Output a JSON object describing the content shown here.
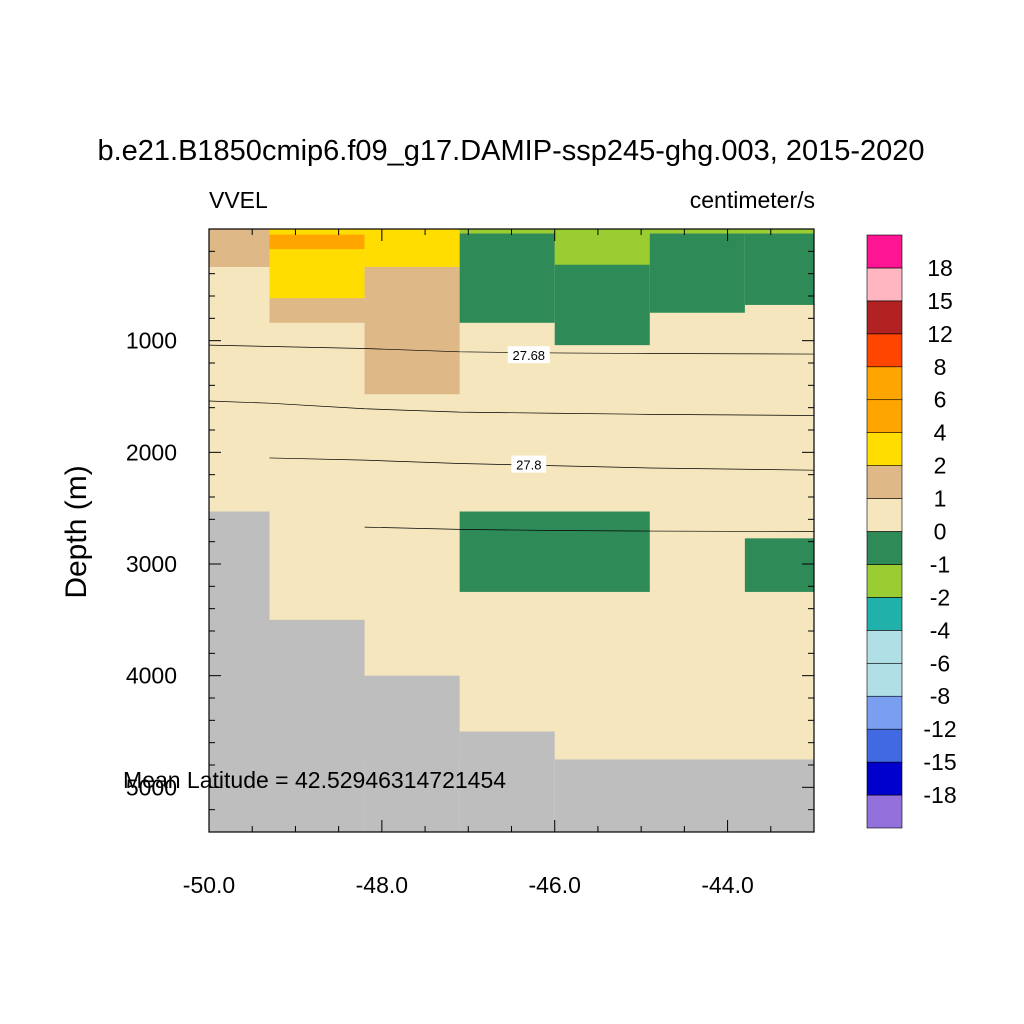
{
  "chart_data": {
    "type": "heatmap",
    "title": "b.e21.B1850cmip6.f09_g17.DAMIP-ssp245-ghg.003, 2015-2020",
    "left_label": "VVEL",
    "right_label": "centimeter/s",
    "ylabel": "Depth (m)",
    "xlabel": "",
    "xlim": [
      -50.0,
      -43.0
    ],
    "ylim_depth": [
      0,
      5400
    ],
    "y_reversed": true,
    "x_ticks": [
      -50.0,
      -48.0,
      -46.0,
      -44.0
    ],
    "x_tick_labels": [
      "-50.0",
      "-48.0",
      "-46.0",
      "-44.0"
    ],
    "y_ticks": [
      1000,
      2000,
      3000,
      4000,
      5000
    ],
    "y_tick_labels": [
      "1000",
      "2000",
      "3000",
      "4000",
      "5000"
    ],
    "annotation": "Mean Latitude = 42.52946314721454",
    "colors": {
      "land": "#bebebe",
      "c_m18": "#9370db",
      "c_m15": "#0000cd",
      "c_m12": "#4169e1",
      "c_m8": "#7b9ff0",
      "c_m6": "#b0dfe5",
      "c_m4": "#b0dfe5",
      "c_m2": "#20b2aa",
      "c_m1": "#9acd32",
      "c_0": "#2e8b57",
      "c_1": "#f5e6be",
      "c_2": "#deb887",
      "c_4": "#ffdd00",
      "c_6": "#ffa500",
      "c_8": "#ffa500",
      "c_12": "#ff4500",
      "c_15": "#b22222",
      "c_18": "#ffb6c1",
      "c_top": "#ff1493"
    },
    "colorbar": {
      "boxes": [
        "c_m18",
        "c_m15",
        "c_m12",
        "c_m8",
        "c_m6",
        "c_m4",
        "c_m2",
        "c_m1",
        "c_0",
        "c_1",
        "c_2",
        "c_4",
        "c_6",
        "c_8",
        "c_12",
        "c_15",
        "c_18",
        "c_top"
      ],
      "labels": [
        "-18",
        "-15",
        "-12",
        "-8",
        "-6",
        "-4",
        "-2",
        "-1",
        "0",
        "1",
        "2",
        "4",
        "6",
        "8",
        "12",
        "15",
        "18"
      ]
    },
    "cells": [
      {
        "x0": -50.0,
        "x1": -43.0,
        "y0": 0,
        "y1": 4750,
        "c": "c_1"
      },
      {
        "x0": -50.0,
        "x1": -49.3,
        "y0": 0,
        "y1": 2530,
        "c": "c_1"
      },
      {
        "x0": -50.0,
        "x1": -49.3,
        "y0": 2530,
        "y1": 5400,
        "c": "land"
      },
      {
        "x0": -49.3,
        "x1": -48.2,
        "y0": 3500,
        "y1": 5400,
        "c": "land"
      },
      {
        "x0": -48.2,
        "x1": -47.1,
        "y0": 4000,
        "y1": 5400,
        "c": "land"
      },
      {
        "x0": -47.1,
        "x1": -46.0,
        "y0": 4500,
        "y1": 5400,
        "c": "land"
      },
      {
        "x0": -46.0,
        "x1": -43.0,
        "y0": 4750,
        "y1": 5400,
        "c": "land"
      },
      {
        "x0": -50.0,
        "x1": -49.3,
        "y0": 0,
        "y1": 340,
        "c": "c_2"
      },
      {
        "x0": -49.3,
        "x1": -48.2,
        "y0": 0,
        "y1": 840,
        "c": "c_2"
      },
      {
        "x0": -49.3,
        "x1": -48.2,
        "y0": 0,
        "y1": 620,
        "c": "c_4"
      },
      {
        "x0": -49.3,
        "x1": -48.2,
        "y0": 50,
        "y1": 180,
        "c": "c_6"
      },
      {
        "x0": -48.2,
        "x1": -47.1,
        "y0": 0,
        "y1": 340,
        "c": "c_4"
      },
      {
        "x0": -48.2,
        "x1": -47.1,
        "y0": 340,
        "y1": 1480,
        "c": "c_2"
      },
      {
        "x0": -47.1,
        "x1": -46.0,
        "y0": 40,
        "y1": 840,
        "c": "c_0"
      },
      {
        "x0": -46.0,
        "x1": -44.9,
        "y0": 40,
        "y1": 1040,
        "c": "c_0"
      },
      {
        "x0": -46.0,
        "x1": -44.9,
        "y0": 40,
        "y1": 320,
        "c": "c_m1"
      },
      {
        "x0": -44.9,
        "x1": -43.8,
        "y0": 40,
        "y1": 750,
        "c": "c_0"
      },
      {
        "x0": -43.8,
        "x1": -43.0,
        "y0": 40,
        "y1": 680,
        "c": "c_0"
      },
      {
        "x0": -47.1,
        "x1": -43.0,
        "y0": 0,
        "y1": 40,
        "c": "c_m1"
      },
      {
        "x0": -47.1,
        "x1": -44.9,
        "y0": 2530,
        "y1": 3250,
        "c": "c_0"
      },
      {
        "x0": -43.8,
        "x1": -43.0,
        "y0": 2770,
        "y1": 3250,
        "c": "c_0"
      }
    ],
    "contours": [
      {
        "label": "27.68",
        "label_at": [
          -46.3,
          1130
        ],
        "points": [
          [
            -50.0,
            1040
          ],
          [
            -48.2,
            1070
          ],
          [
            -47.1,
            1100
          ],
          [
            -46.0,
            1110
          ],
          [
            -44.9,
            1115
          ],
          [
            -43.0,
            1120
          ]
        ]
      },
      {
        "label": "",
        "points": [
          [
            -50.0,
            1540
          ],
          [
            -49.3,
            1560
          ],
          [
            -48.2,
            1610
          ],
          [
            -47.1,
            1640
          ],
          [
            -46.0,
            1650
          ],
          [
            -44.9,
            1660
          ],
          [
            -43.0,
            1670
          ]
        ]
      },
      {
        "label": "27.8",
        "label_at": [
          -46.3,
          2110
        ],
        "points": [
          [
            -49.3,
            2050
          ],
          [
            -48.2,
            2070
          ],
          [
            -47.1,
            2100
          ],
          [
            -46.0,
            2120
          ],
          [
            -44.9,
            2140
          ],
          [
            -43.0,
            2160
          ]
        ]
      },
      {
        "label": "",
        "points": [
          [
            -48.2,
            2670
          ],
          [
            -47.1,
            2690
          ],
          [
            -46.0,
            2700
          ],
          [
            -44.9,
            2705
          ],
          [
            -43.0,
            2710
          ]
        ]
      }
    ]
  }
}
